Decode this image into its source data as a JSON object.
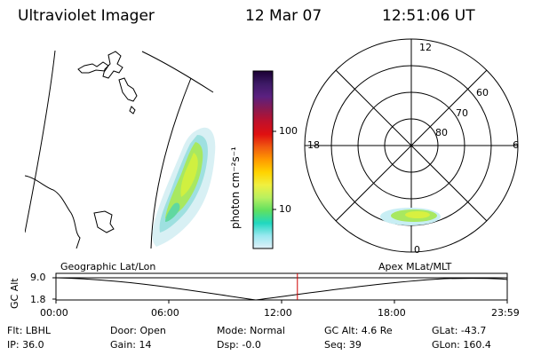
{
  "header": {
    "instrument": "Ultraviolet Imager",
    "date": "12 Mar 07",
    "time": "12:51:06 UT"
  },
  "colorbar": {
    "unit_label": "photon cm⁻²s⁻¹",
    "ticks": [
      "100",
      "10"
    ],
    "colors": [
      "#1a0033",
      "#3d1a66",
      "#5a2080",
      "#8a1a50",
      "#c0102a",
      "#e01010",
      "#f05a10",
      "#ff9a00",
      "#ffd400",
      "#f0f040",
      "#b8f060",
      "#60e060",
      "#20d8c0",
      "#9ae8f0",
      "#e0f0f8"
    ]
  },
  "polar": {
    "mlt_labels": [
      "12",
      "18",
      "6",
      "0"
    ],
    "lat_labels": [
      "60",
      "70",
      "80"
    ]
  },
  "timeline": {
    "axis_label": "GC Alt",
    "y_top": "9.0",
    "y_bottom": "1.8",
    "left_title": "Geographic Lat/Lon",
    "right_title": "Apex MLat/MLT",
    "x_ticks": [
      "00:00",
      "06:00",
      "12:00",
      "18:00",
      "23:59"
    ],
    "current_time_fraction": 0.535
  },
  "status": {
    "filter": "Flt: LBHL",
    "door": "Door: Open",
    "mode": "Mode: Normal",
    "gc_alt": "GC Alt: 4.6 Re",
    "glat": "GLat: -43.7",
    "ip": "IP: 36.0",
    "gain": "Gain: 14",
    "dsp": "Dsp:  -0.0",
    "seq": "Seq: 39",
    "glon": "GLon: 160.4"
  }
}
